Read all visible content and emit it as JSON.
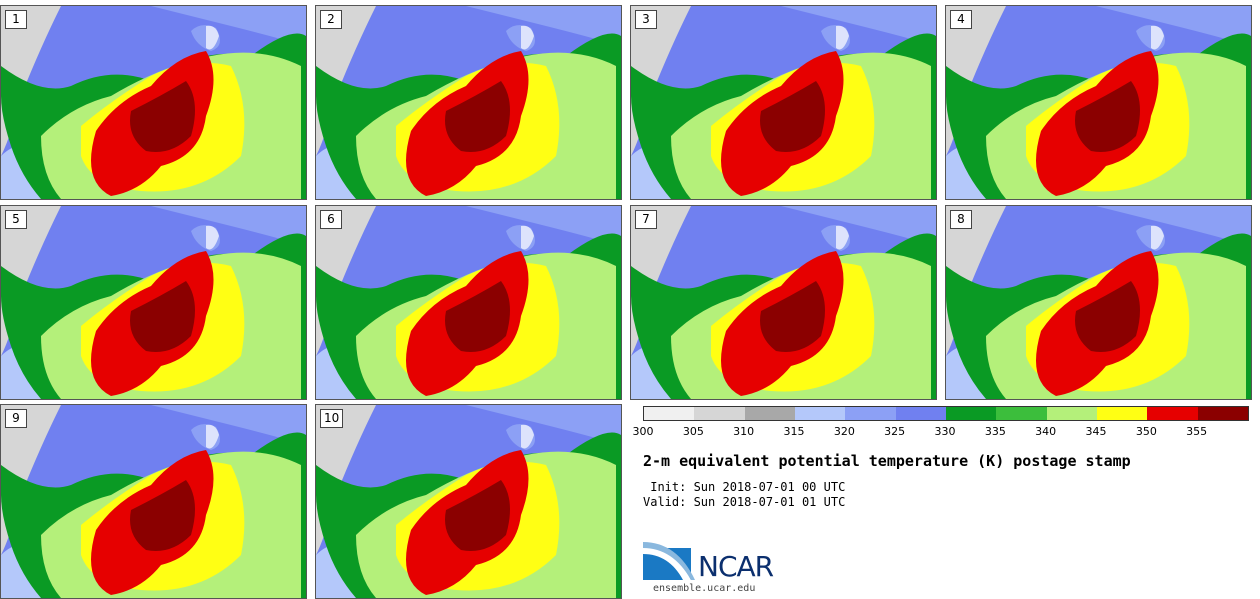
{
  "panels": [
    {
      "label": "1"
    },
    {
      "label": "2"
    },
    {
      "label": "3"
    },
    {
      "label": "4"
    },
    {
      "label": "5"
    },
    {
      "label": "6"
    },
    {
      "label": "7"
    },
    {
      "label": "8"
    },
    {
      "label": "9"
    },
    {
      "label": "10"
    }
  ],
  "colorbar": {
    "colors": [
      "#f0f0f0",
      "#d6d6d6",
      "#a8a8a8",
      "#b4c8fa",
      "#8ca0f5",
      "#7080f0",
      "#0a9a24",
      "#3cbe3c",
      "#b4f07a",
      "#ffff14",
      "#e60000",
      "#8b0000"
    ],
    "ticks": [
      "300",
      "305",
      "310",
      "315",
      "320",
      "325",
      "330",
      "335",
      "340",
      "345",
      "350",
      "355"
    ]
  },
  "title": "2-m equivalent potential temperature (K) postage stamp",
  "init_text": " Init: Sun 2018-07-01 00 UTC",
  "valid_text": "Valid: Sun 2018-07-01 01 UTC",
  "logo": {
    "text": "NCAR",
    "url": "ensemble.ucar.edu"
  }
}
